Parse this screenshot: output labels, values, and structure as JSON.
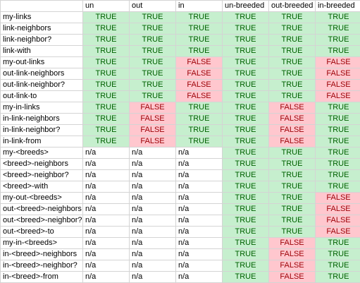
{
  "columns": [
    "",
    "un",
    "out",
    "in",
    "un-breeded",
    "out-breeded",
    "in-breeded"
  ],
  "rows": [
    {
      "label": "my-links",
      "cells": [
        "TRUE",
        "TRUE",
        "TRUE",
        "TRUE",
        "TRUE",
        "TRUE"
      ]
    },
    {
      "label": "link-neighbors",
      "cells": [
        "TRUE",
        "TRUE",
        "TRUE",
        "TRUE",
        "TRUE",
        "TRUE"
      ]
    },
    {
      "label": "link-neighbor?",
      "cells": [
        "TRUE",
        "TRUE",
        "TRUE",
        "TRUE",
        "TRUE",
        "TRUE"
      ]
    },
    {
      "label": "link-with",
      "cells": [
        "TRUE",
        "TRUE",
        "TRUE",
        "TRUE",
        "TRUE",
        "TRUE"
      ]
    },
    {
      "label": "my-out-links",
      "cells": [
        "TRUE",
        "TRUE",
        "FALSE",
        "TRUE",
        "TRUE",
        "FALSE"
      ]
    },
    {
      "label": "out-link-neighbors",
      "cells": [
        "TRUE",
        "TRUE",
        "FALSE",
        "TRUE",
        "TRUE",
        "FALSE"
      ]
    },
    {
      "label": "out-link-neighbor?",
      "cells": [
        "TRUE",
        "TRUE",
        "FALSE",
        "TRUE",
        "TRUE",
        "FALSE"
      ]
    },
    {
      "label": "out-link-to",
      "cells": [
        "TRUE",
        "TRUE",
        "FALSE",
        "TRUE",
        "TRUE",
        "FALSE"
      ]
    },
    {
      "label": "my-in-links",
      "cells": [
        "TRUE",
        "FALSE",
        "TRUE",
        "TRUE",
        "FALSE",
        "TRUE"
      ]
    },
    {
      "label": "in-link-neighbors",
      "cells": [
        "TRUE",
        "FALSE",
        "TRUE",
        "TRUE",
        "FALSE",
        "TRUE"
      ]
    },
    {
      "label": "in-link-neighbor?",
      "cells": [
        "TRUE",
        "FALSE",
        "TRUE",
        "TRUE",
        "FALSE",
        "TRUE"
      ]
    },
    {
      "label": "in-link-from",
      "cells": [
        "TRUE",
        "FALSE",
        "TRUE",
        "TRUE",
        "FALSE",
        "TRUE"
      ]
    },
    {
      "label": "my-<breeds>",
      "cells": [
        "n/a",
        "n/a",
        "n/a",
        "TRUE",
        "TRUE",
        "TRUE"
      ]
    },
    {
      "label": "<breed>-neighbors",
      "cells": [
        "n/a",
        "n/a",
        "n/a",
        "TRUE",
        "TRUE",
        "TRUE"
      ]
    },
    {
      "label": "<breed>-neighbor?",
      "cells": [
        "n/a",
        "n/a",
        "n/a",
        "TRUE",
        "TRUE",
        "TRUE"
      ]
    },
    {
      "label": "<breed>-with",
      "cells": [
        "n/a",
        "n/a",
        "n/a",
        "TRUE",
        "TRUE",
        "TRUE"
      ]
    },
    {
      "label": "my-out-<breeds>",
      "cells": [
        "n/a",
        "n/a",
        "n/a",
        "TRUE",
        "TRUE",
        "FALSE"
      ]
    },
    {
      "label": "out-<breed>-neighbors",
      "cells": [
        "n/a",
        "n/a",
        "n/a",
        "TRUE",
        "TRUE",
        "FALSE"
      ]
    },
    {
      "label": "out-<breed>-neighbor?",
      "cells": [
        "n/a",
        "n/a",
        "n/a",
        "TRUE",
        "TRUE",
        "FALSE"
      ]
    },
    {
      "label": "out-<breed>-to",
      "cells": [
        "n/a",
        "n/a",
        "n/a",
        "TRUE",
        "TRUE",
        "FALSE"
      ]
    },
    {
      "label": "my-in-<breeds>",
      "cells": [
        "n/a",
        "n/a",
        "n/a",
        "TRUE",
        "FALSE",
        "TRUE"
      ]
    },
    {
      "label": "in-<breed>-neighbors",
      "cells": [
        "n/a",
        "n/a",
        "n/a",
        "TRUE",
        "FALSE",
        "TRUE"
      ]
    },
    {
      "label": "in-<breed>-neighbor?",
      "cells": [
        "n/a",
        "n/a",
        "n/a",
        "TRUE",
        "FALSE",
        "TRUE"
      ]
    },
    {
      "label": "in-<breed>-from",
      "cells": [
        "n/a",
        "n/a",
        "n/a",
        "TRUE",
        "FALSE",
        "TRUE"
      ]
    }
  ],
  "colors": {
    "true_fill": "#c6efce",
    "true_text": "#006100",
    "false_fill": "#ffc7ce",
    "false_text": "#9c0006",
    "gridline": "#d4d4d4"
  }
}
